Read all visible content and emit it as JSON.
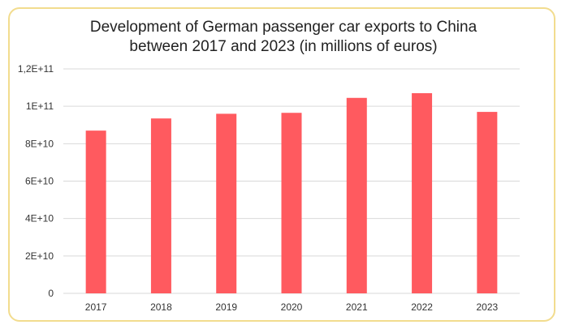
{
  "chart_data": {
    "type": "bar",
    "title_lines": [
      "Development of German passenger car exports to China",
      "between 2017 and 2023 (in millions of euros)"
    ],
    "categories": [
      "2017",
      "2018",
      "2019",
      "2020",
      "2021",
      "2022",
      "2023"
    ],
    "values": [
      87000000000,
      93500000000,
      96000000000,
      96500000000,
      104500000000,
      107000000000,
      97000000000
    ],
    "ylim": [
      0,
      120000000000
    ],
    "yticks": [
      0,
      20000000000,
      40000000000,
      60000000000,
      80000000000,
      100000000000,
      120000000000
    ],
    "ytick_labels": [
      "0",
      "2E+10",
      "4E+10",
      "6E+10",
      "8E+10",
      "1E+11",
      "1,2E+11"
    ],
    "grid": true,
    "bar_color": "#ff5a5f",
    "grid_color": "#d9d9d9",
    "border_color": "#f2dc8e"
  }
}
